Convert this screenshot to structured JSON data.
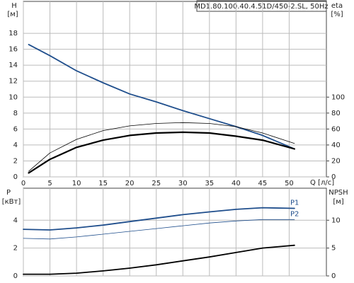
{
  "chart_data": [
    {
      "type": "line",
      "title": "MD1.80.100.40.4.51D/450-2.SL, 50Hz",
      "y_label": "H",
      "y_unit": "[м]",
      "y2_label": "eta",
      "y2_unit": "[%]",
      "x_label": "Q [л/с]",
      "x": [
        1,
        5,
        10,
        15,
        20,
        25,
        30,
        35,
        40,
        45,
        51
      ],
      "xlim": [
        0,
        57
      ],
      "xticks": [
        0,
        5,
        10,
        15,
        20,
        25,
        30,
        35,
        40,
        45,
        50
      ],
      "ylim": [
        0,
        22
      ],
      "yticks": [
        0,
        2,
        4,
        6,
        8,
        10,
        12,
        14,
        16,
        18
      ],
      "y2lim": [
        0,
        220
      ],
      "y2ticks": [
        0,
        20,
        40,
        60,
        80,
        100
      ],
      "grid": true,
      "series": [
        {
          "color": "#1f4e8c",
          "width": 1.8,
          "values": [
            16.6,
            15.2,
            13.3,
            11.8,
            10.4,
            9.4,
            8.3,
            7.3,
            6.3,
            5.2,
            3.5
          ]
        },
        {
          "color": "#000000",
          "width": 2.2,
          "axis": "y2",
          "values": [
            5,
            22,
            37,
            46,
            52,
            55,
            56,
            55,
            51,
            46,
            35
          ]
        },
        {
          "color": "#000000",
          "width": 0.8,
          "axis": "y2",
          "values": [
            7,
            30,
            47,
            58,
            64,
            67,
            68,
            67,
            63,
            55,
            42
          ]
        }
      ]
    },
    {
      "type": "line",
      "y_label": "P",
      "y_unit": "[кВт]",
      "y2_label": "NPSH",
      "y2_unit": "[м]",
      "x": [
        0,
        5,
        10,
        15,
        20,
        25,
        30,
        35,
        40,
        45,
        51
      ],
      "xlim": [
        0,
        57
      ],
      "xticks": [
        0,
        5,
        10,
        15,
        20,
        25,
        30,
        35,
        40,
        45,
        50
      ],
      "ylim": [
        0,
        6.3
      ],
      "yticks": [
        0,
        2,
        4
      ],
      "y2lim": [
        0,
        15.75
      ],
      "y2ticks": [
        0,
        5,
        10
      ],
      "grid": true,
      "series": [
        {
          "name": "P1",
          "color": "#1f4e8c",
          "width": 1.8,
          "values": [
            3.35,
            3.3,
            3.45,
            3.65,
            3.9,
            4.15,
            4.4,
            4.6,
            4.78,
            4.9,
            4.85
          ]
        },
        {
          "name": "P2",
          "color": "#1f4e8c",
          "width": 0.8,
          "values": [
            2.7,
            2.65,
            2.8,
            3.0,
            3.2,
            3.4,
            3.6,
            3.8,
            3.95,
            4.05,
            4.05
          ]
        },
        {
          "color": "#000000",
          "width": 1.8,
          "axis": "y2",
          "values": [
            0.3,
            0.3,
            0.5,
            0.9,
            1.4,
            2.0,
            2.7,
            3.4,
            4.2,
            5.0,
            5.5
          ]
        }
      ]
    }
  ]
}
